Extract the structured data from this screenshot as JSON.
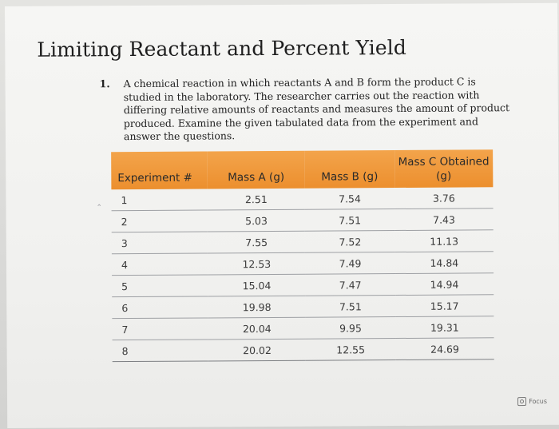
{
  "title": "Limiting Reactant and Percent Yield",
  "question": {
    "number": "1.",
    "text": "A chemical reaction in which reactants A and B form the product C is studied in the laboratory. The researcher carries out the reaction with differing relative amounts of reactants and measures the amount of product produced. Examine the given tabulated data from the experiment and answer the questions."
  },
  "table": {
    "header_color": "#ee952f",
    "headers": [
      "Experiment #",
      "Mass A (g)",
      "Mass B (g)",
      "Mass C Obtained (g)"
    ],
    "rows": [
      [
        "1",
        "2.51",
        "7.54",
        "3.76"
      ],
      [
        "2",
        "5.03",
        "7.51",
        "7.43"
      ],
      [
        "3",
        "7.55",
        "7.52",
        "11.13"
      ],
      [
        "4",
        "12.53",
        "7.49",
        "14.84"
      ],
      [
        "5",
        "15.04",
        "7.47",
        "14.94"
      ],
      [
        "6",
        "19.98",
        "7.51",
        "15.17"
      ],
      [
        "7",
        "20.04",
        "9.95",
        "19.31"
      ],
      [
        "8",
        "20.02",
        "12.55",
        "24.69"
      ]
    ]
  },
  "focus": {
    "label": "Focus",
    "icon": "focus-icon"
  }
}
